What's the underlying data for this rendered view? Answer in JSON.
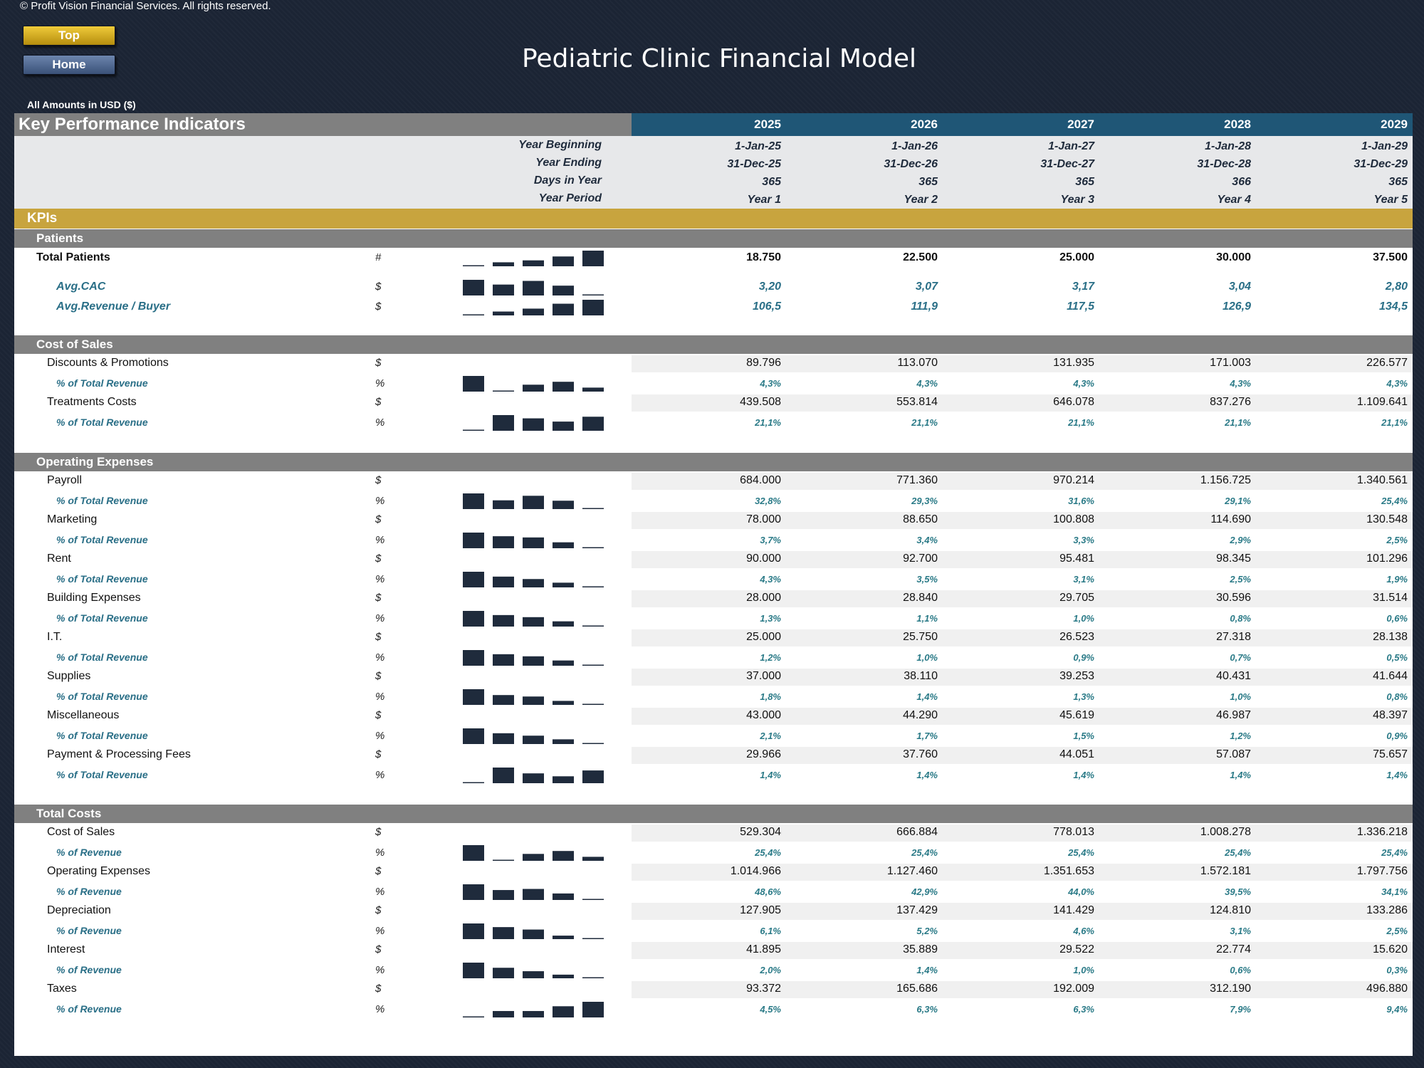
{
  "copyright": "© Profit Vision Financial Services. All rights reserved.",
  "nav": {
    "top_label": "Top",
    "home_label": "Home"
  },
  "title": "Pediatric Clinic Financial Model",
  "currency_note": "All Amounts in  USD ($)",
  "table_title": "Key Performance Indicators",
  "colors": {
    "background": "#1b2434",
    "year_header": "#1f5676",
    "kpi_band": "#c8a43e",
    "section_header": "#808080",
    "kpi_text": "#2a6f87",
    "sparkline_bar": "#1f2b3c"
  },
  "years": [
    "2025",
    "2026",
    "2027",
    "2028",
    "2029"
  ],
  "header_rows": [
    {
      "label": "Year Beginning",
      "values": [
        "1-Jan-25",
        "1-Jan-26",
        "1-Jan-27",
        "1-Jan-28",
        "1-Jan-29"
      ]
    },
    {
      "label": "Year Ending",
      "values": [
        "31-Dec-25",
        "31-Dec-26",
        "31-Dec-27",
        "31-Dec-28",
        "31-Dec-29"
      ]
    },
    {
      "label": "Days in Year",
      "values": [
        "365",
        "365",
        "365",
        "366",
        "365"
      ]
    },
    {
      "label": "Year Period",
      "values": [
        "Year 1",
        "Year 2",
        "Year 3",
        "Year 4",
        "Year 5"
      ]
    }
  ],
  "kpi_band": "KPIs",
  "sections": [
    {
      "title": "Patients",
      "rows": [
        {
          "label": "Total Patients",
          "style": "bold",
          "unit": "#",
          "values": [
            "18.750",
            "22.500",
            "25.000",
            "30.000",
            "37.500"
          ],
          "trend": [
            18750,
            22500,
            25000,
            30000,
            37500
          ]
        },
        {
          "label": "Avg.CAC",
          "style": "kpi",
          "unit": "$",
          "values": [
            "3,20",
            "3,07",
            "3,17",
            "3,04",
            "2,80"
          ],
          "trend": [
            3.2,
            3.07,
            3.17,
            3.04,
            2.8
          ]
        },
        {
          "label": "Avg.Revenue / Buyer",
          "style": "kpi",
          "unit": "$",
          "values": [
            "106,5",
            "111,9",
            "117,5",
            "126,9",
            "134,5"
          ],
          "trend": [
            106.5,
            111.9,
            117.5,
            126.9,
            134.5
          ]
        }
      ]
    },
    {
      "title": "Cost of Sales",
      "rows": [
        {
          "label": "Discounts & Promotions",
          "style": "item",
          "unit": "$",
          "values": [
            "89.796",
            "113.070",
            "131.935",
            "171.003",
            "226.577"
          ]
        },
        {
          "label": "% of Total Revenue",
          "style": "pct",
          "unit": "%",
          "values": [
            "4,3%",
            "4,3%",
            "4,3%",
            "4,3%",
            "4,3%"
          ],
          "trend": [
            4.35,
            4.3,
            4.32,
            4.33,
            4.31
          ]
        },
        {
          "label": "Treatments Costs",
          "style": "item",
          "unit": "$",
          "values": [
            "439.508",
            "553.814",
            "646.078",
            "837.276",
            "1.109.641"
          ]
        },
        {
          "label": "% of Total Revenue",
          "style": "pct",
          "unit": "%",
          "values": [
            "21,1%",
            "21,1%",
            "21,1%",
            "21,1%",
            "21,1%"
          ],
          "trend": [
            21.05,
            21.14,
            21.12,
            21.1,
            21.13
          ]
        }
      ]
    },
    {
      "title": "Operating Expenses",
      "rows": [
        {
          "label": "Payroll",
          "style": "item",
          "unit": "$",
          "values": [
            "684.000",
            "771.360",
            "970.214",
            "1.156.725",
            "1.340.561"
          ]
        },
        {
          "label": "% of Total Revenue",
          "style": "pct",
          "unit": "%",
          "values": [
            "32,8%",
            "29,3%",
            "31,6%",
            "29,1%",
            "25,4%"
          ],
          "trend": [
            32.8,
            29.3,
            31.6,
            29.1,
            25.4
          ]
        },
        {
          "label": "Marketing",
          "style": "item",
          "unit": "$",
          "values": [
            "78.000",
            "88.650",
            "100.808",
            "114.690",
            "130.548"
          ]
        },
        {
          "label": "% of Total Revenue",
          "style": "pct",
          "unit": "%",
          "values": [
            "3,7%",
            "3,4%",
            "3,3%",
            "2,9%",
            "2,5%"
          ],
          "trend": [
            3.7,
            3.4,
            3.3,
            2.9,
            2.5
          ]
        },
        {
          "label": "Rent",
          "style": "item",
          "unit": "$",
          "values": [
            "90.000",
            "92.700",
            "95.481",
            "98.345",
            "101.296"
          ]
        },
        {
          "label": "% of Total Revenue",
          "style": "pct",
          "unit": "%",
          "values": [
            "4,3%",
            "3,5%",
            "3,1%",
            "2,5%",
            "1,9%"
          ],
          "trend": [
            4.3,
            3.5,
            3.1,
            2.5,
            1.9
          ]
        },
        {
          "label": "Building Expenses",
          "style": "item",
          "unit": "$",
          "values": [
            "28.000",
            "28.840",
            "29.705",
            "30.596",
            "31.514"
          ]
        },
        {
          "label": "% of Total Revenue",
          "style": "pct",
          "unit": "%",
          "values": [
            "1,3%",
            "1,1%",
            "1,0%",
            "0,8%",
            "0,6%"
          ],
          "trend": [
            1.3,
            1.1,
            1.0,
            0.8,
            0.6
          ]
        },
        {
          "label": "I.T.",
          "style": "item",
          "unit": "$",
          "values": [
            "25.000",
            "25.750",
            "26.523",
            "27.318",
            "28.138"
          ]
        },
        {
          "label": "% of Total Revenue",
          "style": "pct",
          "unit": "%",
          "values": [
            "1,2%",
            "1,0%",
            "0,9%",
            "0,7%",
            "0,5%"
          ],
          "trend": [
            1.2,
            1.0,
            0.9,
            0.7,
            0.5
          ]
        },
        {
          "label": "Supplies",
          "style": "item",
          "unit": "$",
          "values": [
            "37.000",
            "38.110",
            "39.253",
            "40.431",
            "41.644"
          ]
        },
        {
          "label": "% of Total Revenue",
          "style": "pct",
          "unit": "%",
          "values": [
            "1,8%",
            "1,4%",
            "1,3%",
            "1,0%",
            "0,8%"
          ],
          "trend": [
            1.8,
            1.4,
            1.3,
            1.0,
            0.8
          ]
        },
        {
          "label": "Miscellaneous",
          "style": "item",
          "unit": "$",
          "values": [
            "43.000",
            "44.290",
            "45.619",
            "46.987",
            "48.397"
          ]
        },
        {
          "label": "% of Total Revenue",
          "style": "pct",
          "unit": "%",
          "values": [
            "2,1%",
            "1,7%",
            "1,5%",
            "1,2%",
            "0,9%"
          ],
          "trend": [
            2.1,
            1.7,
            1.5,
            1.2,
            0.9
          ]
        },
        {
          "label": "Payment & Processing Fees",
          "style": "item",
          "unit": "$",
          "values": [
            "29.966",
            "37.760",
            "44.051",
            "57.087",
            "75.657"
          ]
        },
        {
          "label": "% of Total Revenue",
          "style": "pct",
          "unit": "%",
          "values": [
            "1,4%",
            "1,4%",
            "1,4%",
            "1,4%",
            "1,4%"
          ],
          "trend": [
            1.4,
            1.45,
            1.43,
            1.42,
            1.44
          ]
        }
      ]
    },
    {
      "title": "Total Costs",
      "rows": [
        {
          "label": "Cost of Sales",
          "style": "item",
          "unit": "$",
          "values": [
            "529.304",
            "666.884",
            "778.013",
            "1.008.278",
            "1.336.218"
          ]
        },
        {
          "label": "% of Revenue",
          "style": "pct",
          "unit": "%",
          "values": [
            "25,4%",
            "25,4%",
            "25,4%",
            "25,4%",
            "25,4%"
          ],
          "trend": [
            25.45,
            25.4,
            25.42,
            25.43,
            25.41
          ]
        },
        {
          "label": "Operating Expenses",
          "style": "item",
          "unit": "$",
          "values": [
            "1.014.966",
            "1.127.460",
            "1.351.653",
            "1.572.181",
            "1.797.756"
          ]
        },
        {
          "label": "% of Revenue",
          "style": "pct",
          "unit": "%",
          "values": [
            "48,6%",
            "42,9%",
            "44,0%",
            "39,5%",
            "34,1%"
          ],
          "trend": [
            48.6,
            42.9,
            44.0,
            39.5,
            34.1
          ]
        },
        {
          "label": "Depreciation",
          "style": "item",
          "unit": "$",
          "values": [
            "127.905",
            "137.429",
            "141.429",
            "124.810",
            "133.286"
          ]
        },
        {
          "label": "% of Revenue",
          "style": "pct",
          "unit": "%",
          "values": [
            "6,1%",
            "5,2%",
            "4,6%",
            "3,1%",
            "2,5%"
          ],
          "trend": [
            6.1,
            5.2,
            4.6,
            3.1,
            2.5
          ]
        },
        {
          "label": "Interest",
          "style": "item",
          "unit": "$",
          "values": [
            "41.895",
            "35.889",
            "29.522",
            "22.774",
            "15.620"
          ]
        },
        {
          "label": "% of Revenue",
          "style": "pct",
          "unit": "%",
          "values": [
            "2,0%",
            "1,4%",
            "1,0%",
            "0,6%",
            "0,3%"
          ],
          "trend": [
            2.0,
            1.4,
            1.0,
            0.6,
            0.3
          ]
        },
        {
          "label": "Taxes",
          "style": "item",
          "unit": "$",
          "values": [
            "93.372",
            "165.686",
            "192.009",
            "312.190",
            "496.880"
          ]
        },
        {
          "label": "% of Revenue",
          "style": "pct",
          "unit": "%",
          "values": [
            "4,5%",
            "6,3%",
            "6,3%",
            "7,9%",
            "9,4%"
          ],
          "trend": [
            4.5,
            6.3,
            6.3,
            7.9,
            9.4
          ]
        }
      ]
    }
  ]
}
